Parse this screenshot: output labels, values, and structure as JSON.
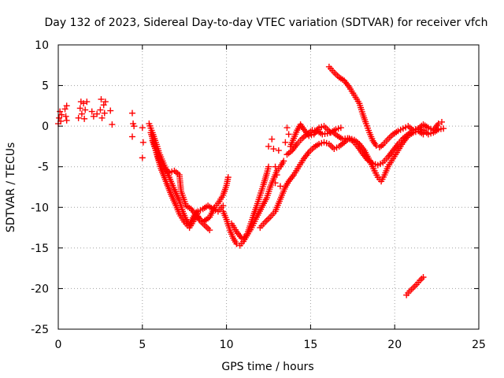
{
  "chart_data": {
    "type": "scatter",
    "title": "Day 132 of 2023, Sidereal Day-to-day VTEC variation (SDTVAR) for receiver vfch",
    "xlabel": "GPS time / hours",
    "ylabel": "SDTVAR / TECUs",
    "xlim": [
      0,
      25
    ],
    "ylim": [
      -25,
      10
    ],
    "xticks": [
      0,
      5,
      10,
      15,
      20,
      25
    ],
    "yticks": [
      -25,
      -20,
      -15,
      -10,
      -5,
      0,
      5,
      10
    ],
    "xtick_labels": [
      "0",
      "5",
      "10",
      "15",
      "20",
      "25"
    ],
    "ytick_labels": [
      "-25",
      "-20",
      "-15",
      "-10",
      "-5",
      "0",
      "5",
      "10"
    ],
    "grid": true,
    "marker": "+",
    "series_color": "#ff0000",
    "series": [
      {
        "name": "early-scatter",
        "points": [
          [
            0.0,
            0.3
          ],
          [
            0.05,
            1.0
          ],
          [
            0.1,
            1.8
          ],
          [
            0.15,
            0.6
          ],
          [
            0.2,
            1.4
          ],
          [
            0.4,
            2.1
          ],
          [
            0.45,
            1.2
          ],
          [
            0.5,
            0.7
          ],
          [
            0.5,
            2.5
          ],
          [
            1.2,
            1.0
          ],
          [
            1.3,
            2.2
          ],
          [
            1.35,
            3.0
          ],
          [
            1.4,
            1.5
          ],
          [
            1.5,
            2.8
          ],
          [
            1.55,
            0.9
          ],
          [
            1.6,
            2.0
          ],
          [
            1.7,
            3.0
          ],
          [
            2.0,
            1.8
          ],
          [
            2.1,
            1.2
          ],
          [
            2.3,
            1.5
          ],
          [
            2.5,
            2.0
          ],
          [
            2.55,
            3.3
          ],
          [
            2.6,
            1.0
          ],
          [
            2.7,
            2.6
          ],
          [
            2.75,
            1.6
          ],
          [
            2.8,
            3.0
          ],
          [
            3.1,
            1.9
          ],
          [
            3.2,
            0.2
          ],
          [
            4.4,
            1.6
          ],
          [
            4.45,
            0.3
          ],
          [
            4.5,
            0.0
          ],
          [
            4.4,
            -1.3
          ],
          [
            5.0,
            -0.2
          ],
          [
            5.05,
            -2.0
          ],
          [
            5.0,
            -3.9
          ]
        ]
      },
      {
        "name": "track-a",
        "points": [
          [
            5.4,
            0.3
          ],
          [
            5.6,
            -0.8
          ],
          [
            5.8,
            -2.0
          ],
          [
            6.0,
            -3.3
          ],
          [
            6.3,
            -4.8
          ],
          [
            6.6,
            -6.3
          ],
          [
            6.9,
            -7.8
          ],
          [
            7.2,
            -9.2
          ],
          [
            7.4,
            -10.5
          ],
          [
            7.6,
            -11.5
          ],
          [
            7.8,
            -12.2
          ],
          [
            8.0,
            -11.3
          ],
          [
            8.2,
            -10.6
          ],
          [
            8.4,
            -11.6
          ],
          [
            8.6,
            -12.0
          ],
          [
            8.8,
            -12.4
          ],
          [
            9.0,
            -12.8
          ]
        ]
      },
      {
        "name": "track-b",
        "points": [
          [
            5.5,
            -0.8
          ],
          [
            5.7,
            -2.2
          ],
          [
            5.9,
            -3.8
          ],
          [
            6.1,
            -5.2
          ],
          [
            6.4,
            -6.8
          ],
          [
            6.7,
            -8.4
          ],
          [
            7.0,
            -9.8
          ],
          [
            7.2,
            -10.8
          ],
          [
            7.5,
            -11.8
          ],
          [
            7.8,
            -12.5
          ],
          [
            8.1,
            -11.5
          ],
          [
            8.3,
            -10.5
          ],
          [
            8.6,
            -10.2
          ],
          [
            8.9,
            -9.8
          ],
          [
            9.2,
            -10.2
          ],
          [
            9.5,
            -10.5
          ],
          [
            9.8,
            -9.8
          ]
        ]
      },
      {
        "name": "track-c",
        "points": [
          [
            5.6,
            -1.8
          ],
          [
            5.8,
            -3.0
          ],
          [
            6.0,
            -4.2
          ],
          [
            6.3,
            -5.2
          ],
          [
            6.6,
            -5.7
          ],
          [
            6.9,
            -5.5
          ],
          [
            7.2,
            -6.0
          ],
          [
            7.3,
            -8.0
          ],
          [
            7.6,
            -9.8
          ],
          [
            7.9,
            -10.2
          ],
          [
            8.2,
            -11.0
          ],
          [
            8.6,
            -11.8
          ],
          [
            9.0,
            -11.2
          ],
          [
            9.3,
            -10.0
          ],
          [
            9.5,
            -9.5
          ],
          [
            9.8,
            -8.5
          ],
          [
            10.0,
            -7.3
          ],
          [
            10.1,
            -6.3
          ]
        ]
      },
      {
        "name": "track-d",
        "points": [
          [
            9.8,
            -10.5
          ],
          [
            10.0,
            -11.5
          ],
          [
            10.2,
            -12.8
          ],
          [
            10.4,
            -13.8
          ],
          [
            10.6,
            -14.5
          ],
          [
            10.8,
            -14.7
          ],
          [
            11.0,
            -14.2
          ],
          [
            11.2,
            -13.5
          ],
          [
            11.4,
            -12.3
          ],
          [
            11.6,
            -11.0
          ],
          [
            11.8,
            -9.8
          ],
          [
            12.0,
            -8.5
          ],
          [
            12.2,
            -7.2
          ],
          [
            12.4,
            -5.8
          ],
          [
            12.5,
            -5.0
          ]
        ]
      },
      {
        "name": "track-e",
        "points": [
          [
            10.3,
            -12.0
          ],
          [
            10.6,
            -13.0
          ],
          [
            10.9,
            -13.8
          ],
          [
            11.2,
            -13.5
          ],
          [
            11.5,
            -12.5
          ],
          [
            11.8,
            -11.2
          ],
          [
            12.1,
            -10.0
          ],
          [
            12.4,
            -8.8
          ],
          [
            12.6,
            -7.5
          ],
          [
            12.8,
            -6.5
          ],
          [
            13.0,
            -5.5
          ],
          [
            13.2,
            -5.0
          ],
          [
            13.4,
            -4.3
          ]
        ]
      },
      {
        "name": "track-f",
        "points": [
          [
            12.0,
            -12.5
          ],
          [
            12.3,
            -11.8
          ],
          [
            12.6,
            -11.2
          ],
          [
            12.9,
            -10.5
          ],
          [
            13.1,
            -9.5
          ],
          [
            13.3,
            -8.5
          ],
          [
            13.5,
            -7.5
          ],
          [
            13.7,
            -6.8
          ],
          [
            14.0,
            -6.0
          ],
          [
            14.3,
            -5.0
          ],
          [
            14.6,
            -4.0
          ],
          [
            14.9,
            -3.2
          ],
          [
            15.2,
            -2.6
          ],
          [
            15.5,
            -2.2
          ],
          [
            15.8,
            -2.0
          ],
          [
            16.1,
            -2.2
          ],
          [
            16.4,
            -2.8
          ],
          [
            16.7,
            -2.5
          ],
          [
            17.0,
            -2.0
          ],
          [
            17.3,
            -1.5
          ],
          [
            17.6,
            -1.7
          ],
          [
            17.9,
            -2.2
          ],
          [
            18.2,
            -3.0
          ],
          [
            18.5,
            -4.2
          ],
          [
            18.8,
            -5.5
          ],
          [
            19.0,
            -6.3
          ],
          [
            19.2,
            -6.8
          ],
          [
            19.4,
            -6.0
          ],
          [
            19.6,
            -5.0
          ],
          [
            19.9,
            -4.0
          ],
          [
            20.2,
            -3.0
          ],
          [
            20.5,
            -2.0
          ],
          [
            20.8,
            -1.2
          ],
          [
            21.1,
            -0.8
          ],
          [
            21.4,
            -0.6
          ],
          [
            21.7,
            -1.0
          ]
        ]
      },
      {
        "name": "track-g",
        "points": [
          [
            13.6,
            -3.5
          ],
          [
            13.9,
            -3.0
          ],
          [
            14.2,
            -2.2
          ],
          [
            14.5,
            -1.5
          ],
          [
            14.8,
            -1.0
          ],
          [
            15.1,
            -0.5
          ],
          [
            15.4,
            -0.6
          ],
          [
            15.7,
            -1.0
          ],
          [
            16.0,
            -0.9
          ],
          [
            16.3,
            -0.7
          ],
          [
            16.6,
            -1.2
          ],
          [
            16.9,
            -1.6
          ],
          [
            17.2,
            -1.5
          ],
          [
            17.5,
            -1.8
          ],
          [
            17.8,
            -2.5
          ],
          [
            18.1,
            -3.4
          ],
          [
            18.4,
            -4.2
          ],
          [
            18.7,
            -4.6
          ],
          [
            19.0,
            -4.8
          ],
          [
            19.3,
            -4.5
          ],
          [
            19.6,
            -3.8
          ],
          [
            19.9,
            -3.0
          ],
          [
            20.2,
            -2.2
          ],
          [
            20.5,
            -1.5
          ],
          [
            20.8,
            -1.0
          ],
          [
            21.1,
            -0.5
          ],
          [
            21.4,
            -0.3
          ],
          [
            21.7,
            -0.5
          ],
          [
            22.0,
            -1.0
          ],
          [
            22.3,
            -0.8
          ],
          [
            22.6,
            -0.4
          ],
          [
            22.9,
            -0.3
          ]
        ]
      },
      {
        "name": "track-h",
        "points": [
          [
            16.1,
            7.3
          ],
          [
            16.4,
            6.6
          ],
          [
            16.7,
            6.0
          ],
          [
            17.0,
            5.6
          ],
          [
            17.3,
            4.8
          ],
          [
            17.6,
            3.8
          ],
          [
            17.9,
            2.8
          ],
          [
            18.1,
            1.5
          ],
          [
            18.3,
            0.3
          ],
          [
            18.5,
            -0.8
          ],
          [
            18.7,
            -1.8
          ],
          [
            18.9,
            -2.4
          ],
          [
            19.1,
            -2.6
          ],
          [
            19.3,
            -2.3
          ],
          [
            19.6,
            -1.6
          ],
          [
            19.9,
            -1.0
          ],
          [
            20.2,
            -0.6
          ],
          [
            20.5,
            -0.3
          ],
          [
            20.8,
            0.0
          ],
          [
            21.1,
            -0.5
          ],
          [
            21.4,
            -0.3
          ],
          [
            21.7,
            0.2
          ],
          [
            22.0,
            -0.2
          ],
          [
            22.3,
            -0.5
          ],
          [
            22.6,
            0.3
          ],
          [
            22.8,
            0.5
          ]
        ]
      },
      {
        "name": "track-i",
        "points": [
          [
            13.8,
            -2.5
          ],
          [
            14.0,
            -1.5
          ],
          [
            14.2,
            -0.5
          ],
          [
            14.4,
            0.2
          ],
          [
            14.6,
            -0.4
          ],
          [
            14.9,
            -1.2
          ],
          [
            15.2,
            -1.0
          ],
          [
            15.5,
            -0.2
          ],
          [
            15.8,
            0.0
          ],
          [
            16.2,
            -0.8
          ],
          [
            16.5,
            -0.4
          ],
          [
            16.8,
            -0.2
          ]
        ]
      },
      {
        "name": "isolated",
        "points": [
          [
            12.5,
            -2.5
          ],
          [
            12.7,
            -1.6
          ],
          [
            12.8,
            -2.8
          ],
          [
            12.9,
            -5.0
          ],
          [
            13.1,
            -3.0
          ],
          [
            13.5,
            -2.0
          ],
          [
            13.6,
            -0.2
          ],
          [
            13.7,
            -1.0
          ],
          [
            13.0,
            -6.0
          ],
          [
            12.9,
            -7.0
          ],
          [
            13.2,
            -7.4
          ]
        ]
      },
      {
        "name": "late-segment",
        "points": [
          [
            20.7,
            -20.8
          ],
          [
            20.9,
            -20.3
          ],
          [
            21.1,
            -19.9
          ],
          [
            21.3,
            -19.5
          ],
          [
            21.5,
            -19.0
          ],
          [
            21.7,
            -18.6
          ]
        ]
      }
    ]
  }
}
